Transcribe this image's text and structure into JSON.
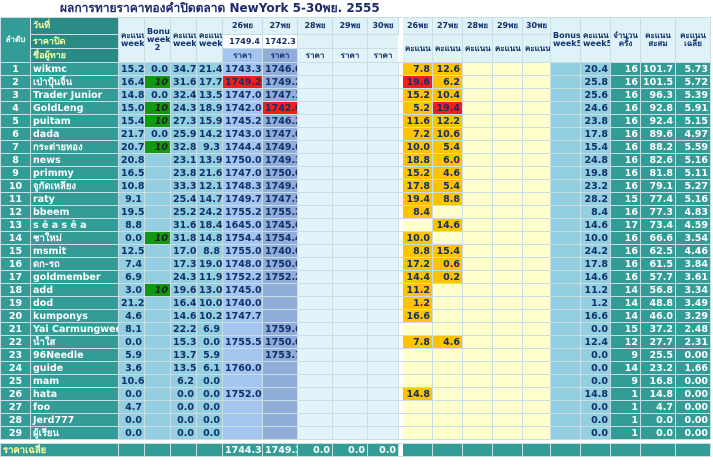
{
  "title": "ผลการทายราคาทองคำปิดตลาด NewYork  5-30พย. 2555",
  "header": {
    "rank_label": "ลำดับ",
    "date_label": "วันที่",
    "close_label": "ราคาปิด",
    "name_label": "ชื่อผู้ทาย",
    "left_headers": [
      "คะแนน week1",
      "Bonus week 2",
      "คะแนน week2",
      "คะแนน week3"
    ],
    "price_dates": [
      "26พย",
      "27พย",
      "28พย",
      "29พย",
      "30พย"
    ],
    "close_prices": [
      "1749.4",
      "1742.3",
      null,
      null,
      null
    ],
    "price_labels": [
      "ราคา",
      "ราคา",
      "ราคา",
      "ราคา",
      "ราคา"
    ],
    "score_dates": [
      "26พย",
      "27พย",
      "28พย",
      "29พย",
      "30พย"
    ],
    "score_labels": [
      "คะแนน",
      "คะแนน",
      "คะแนน",
      "คะแนน",
      "คะแนน"
    ],
    "right_headers": [
      "Bonus week5",
      "คะแนน week5",
      "จำนวนครั้ง",
      "คะแนนสะสม",
      "คะแนนเฉลี่ย"
    ]
  },
  "table": {
    "rows": [
      [
        "1",
        "wikmc",
        "15.2",
        "0.0",
        "34.7",
        "21.4",
        "1743.3",
        "1746.0",
        null,
        null,
        null,
        "7.8",
        "12.6",
        null,
        null,
        null,
        null,
        "20.4",
        "16",
        "101.7",
        "5.73"
      ],
      [
        "2",
        "เป่าปุ้นจิ้น",
        "16.4",
        "10",
        "31.6",
        "17.7",
        "1749.2",
        "1749.2",
        null,
        null,
        null,
        "19.6",
        "6.2",
        null,
        null,
        null,
        null,
        "25.8",
        "16",
        "101.5",
        "5.72"
      ],
      [
        "3",
        "Trader Junior",
        "14.8",
        "0.0",
        "32.4",
        "13.5",
        "1747.0",
        "1747.1",
        null,
        null,
        null,
        "15.2",
        "10.4",
        null,
        null,
        null,
        null,
        "25.6",
        "16",
        "96.3",
        "5.39"
      ],
      [
        "4",
        "GoldLeng",
        "15.0",
        "10",
        "24.3",
        "18.9",
        "1742.0",
        "1742.0",
        null,
        null,
        null,
        "5.2",
        "19.4",
        null,
        null,
        null,
        null,
        "24.6",
        "16",
        "92.8",
        "5.91"
      ],
      [
        "5",
        "puitam",
        "15.4",
        "10",
        "27.3",
        "15.9",
        "1745.2",
        "1746.2",
        null,
        null,
        null,
        "11.6",
        "12.2",
        null,
        null,
        null,
        null,
        "23.8",
        "16",
        "92.4",
        "5.15"
      ],
      [
        "6",
        "dada",
        "21.7",
        "0.0",
        "25.9",
        "14.2",
        "1743.0",
        "1747.0",
        null,
        null,
        null,
        "7.2",
        "10.6",
        null,
        null,
        null,
        null,
        "17.8",
        "16",
        "89.6",
        "4.97"
      ],
      [
        "7",
        "กระต่ายทอง",
        "20.7",
        "10",
        "32.8",
        "9.3",
        "1744.4",
        "1749.6",
        null,
        null,
        null,
        "10.0",
        "5.4",
        null,
        null,
        null,
        null,
        "15.4",
        "16",
        "88.2",
        "5.59"
      ],
      [
        "8",
        "news",
        "20.8",
        null,
        "23.1",
        "13.9",
        "1750.0",
        "1749.3",
        null,
        null,
        null,
        "18.8",
        "6.0",
        null,
        null,
        null,
        null,
        "24.8",
        "16",
        "82.6",
        "5.16"
      ],
      [
        "9",
        "primmy",
        "16.5",
        null,
        "23.8",
        "21.6",
        "1747.0",
        "1750.0",
        null,
        null,
        null,
        "15.2",
        "4.6",
        null,
        null,
        null,
        null,
        "19.8",
        "16",
        "81.8",
        "5.11"
      ],
      [
        "10",
        "จูกัดเหลียง",
        "10.8",
        null,
        "33.3",
        "12.1",
        "1748.3",
        "1749.6",
        null,
        null,
        null,
        "17.8",
        "5.4",
        null,
        null,
        null,
        null,
        "23.2",
        "16",
        "79.1",
        "5.27"
      ],
      [
        "11",
        "raty",
        "9.1",
        null,
        "25.4",
        "14.7",
        "1749.7",
        "1747.9",
        null,
        null,
        null,
        "19.4",
        "8.8",
        null,
        null,
        null,
        null,
        "28.2",
        "15",
        "77.4",
        "5.16"
      ],
      [
        "12",
        "bbeem",
        "19.5",
        null,
        "25.2",
        "24.2",
        "1755.2",
        "1755.2",
        null,
        null,
        null,
        "8.4",
        null,
        null,
        null,
        null,
        null,
        "8.4",
        "16",
        "77.3",
        "4.83"
      ],
      [
        "13",
        "s ê a s ê a",
        "8.8",
        null,
        "31.6",
        "18.4",
        "1645.0",
        "1745.0",
        null,
        null,
        null,
        null,
        "14.6",
        null,
        null,
        null,
        null,
        "14.6",
        "17",
        "73.4",
        "4.59"
      ],
      [
        "14",
        "ชาใหม่",
        "0.0",
        "10",
        "31.8",
        "14.8",
        "1754.4",
        "1754.4",
        null,
        null,
        null,
        "10.0",
        null,
        null,
        null,
        null,
        null,
        "10.0",
        "16",
        "66.6",
        "3.54"
      ],
      [
        "15",
        "msmit",
        "12.5",
        null,
        "17.0",
        "8.8",
        "1755.0",
        "1740.0",
        null,
        null,
        null,
        "8.8",
        "15.4",
        null,
        null,
        null,
        null,
        "24.2",
        "16",
        "62.5",
        "4.46"
      ],
      [
        "16",
        "ดก-รถ",
        "7.4",
        null,
        "17.3",
        "19.0",
        "1748.0",
        "1750.0",
        null,
        null,
        null,
        "17.2",
        "0.6",
        null,
        null,
        null,
        null,
        "17.8",
        "16",
        "61.5",
        "3.84"
      ],
      [
        "17",
        "goldmember",
        "6.9",
        null,
        "24.3",
        "11.9",
        "1752.2",
        "1752.2",
        null,
        null,
        null,
        "14.4",
        "0.2",
        null,
        null,
        null,
        null,
        "14.6",
        "16",
        "57.7",
        "3.61"
      ],
      [
        "18",
        "add",
        "3.0",
        "10",
        "19.6",
        "13.0",
        "1745.0",
        null,
        null,
        null,
        null,
        "11.2",
        null,
        null,
        null,
        null,
        null,
        "11.2",
        "14",
        "56.8",
        "3.34"
      ],
      [
        "19",
        "dod",
        "21.2",
        null,
        "16.4",
        "10.0",
        "1740.0",
        null,
        null,
        null,
        null,
        "1.2",
        null,
        null,
        null,
        null,
        null,
        "1.2",
        "14",
        "48.8",
        "3.49"
      ],
      [
        "20",
        "kumponys",
        "4.6",
        null,
        "14.6",
        "10.2",
        "1747.7",
        null,
        null,
        null,
        null,
        "16.6",
        null,
        null,
        null,
        null,
        null,
        "16.6",
        "14",
        "46.0",
        "3.29"
      ],
      [
        "21",
        "Yai Carmungwed",
        "8.1",
        null,
        "22.2",
        "6.9",
        null,
        "1759.6",
        null,
        null,
        null,
        null,
        null,
        null,
        null,
        null,
        null,
        "0.0",
        "15",
        "37.2",
        "2.48"
      ],
      [
        "22",
        "น้ำใส",
        "0.0",
        null,
        "15.3",
        "0.0",
        "1755.5",
        "1750.0",
        null,
        null,
        null,
        "7.8",
        "4.6",
        null,
        null,
        null,
        null,
        "12.4",
        "12",
        "27.7",
        "2.31"
      ],
      [
        "23",
        "96Needle",
        "5.9",
        null,
        "13.7",
        "5.9",
        null,
        "1753.7",
        null,
        null,
        null,
        null,
        null,
        null,
        null,
        null,
        null,
        "0.0",
        "9",
        "25.5",
        "0.00"
      ],
      [
        "24",
        "guide",
        "3.6",
        null,
        "13.5",
        "6.1",
        "1760.0",
        null,
        null,
        null,
        null,
        null,
        null,
        null,
        null,
        null,
        null,
        "0.0",
        "14",
        "23.2",
        "1.66"
      ],
      [
        "25",
        "mam",
        "10.6",
        null,
        "6.2",
        "0.0",
        null,
        null,
        null,
        null,
        null,
        null,
        null,
        null,
        null,
        null,
        null,
        "0.0",
        "9",
        "16.8",
        "0.00"
      ],
      [
        "26",
        "hata",
        "0.0",
        null,
        "0.0",
        "0.0",
        "1752.0",
        null,
        null,
        null,
        null,
        "14.8",
        null,
        null,
        null,
        null,
        null,
        "14.8",
        "1",
        "14.8",
        "0.00"
      ],
      [
        "27",
        "foo",
        "4.7",
        null,
        "0.0",
        "0.0",
        null,
        null,
        null,
        null,
        null,
        null,
        null,
        null,
        null,
        null,
        null,
        "0.0",
        "1",
        "4.7",
        "0.00"
      ],
      [
        "28",
        "Jerd777",
        "0.0",
        null,
        "0.0",
        "0.0",
        null,
        null,
        null,
        null,
        null,
        null,
        null,
        null,
        null,
        null,
        null,
        "0.0",
        "1",
        "0.0",
        "0.00"
      ],
      [
        "29",
        "ผู้เรียน",
        "0.0",
        null,
        "0.0",
        "0.0",
        null,
        null,
        null,
        null,
        null,
        null,
        null,
        null,
        null,
        null,
        null,
        "0.0",
        "1",
        "0.0",
        "0.00"
      ]
    ]
  },
  "footer": {
    "label": "ราคาเฉลี่ย",
    "values": [
      "1744.3",
      "1749.3",
      "0.0",
      "0.0",
      "0.0"
    ]
  }
}
